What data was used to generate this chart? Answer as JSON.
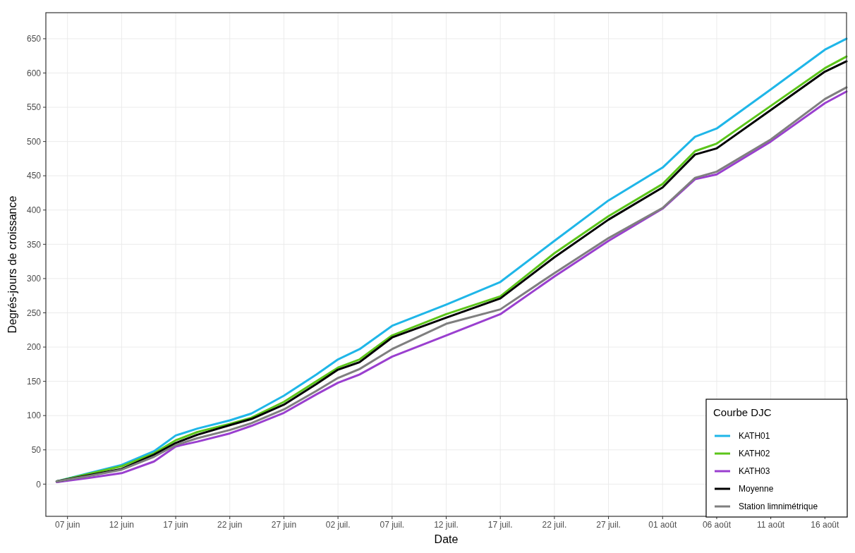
{
  "chart_data": {
    "type": "line",
    "xlabel": "Date",
    "ylabel": "Degrés-jours de croissance",
    "legend_title": "Courbe DJC",
    "legend": "bottom right",
    "grid": true,
    "line_style": "solid",
    "x": [
      "--06-06",
      "--06-09",
      "--06-12",
      "--06-15",
      "--06-17",
      "--06-19",
      "--06-22",
      "--06-24",
      "--06-27",
      "--06-30",
      "--07-02",
      "--07-04",
      "--07-07",
      "--07-12",
      "--07-17",
      "--07-22",
      "--07-27",
      "--08-01",
      "--08-04",
      "--08-06",
      "--08-11",
      "--08-16",
      "--08-18"
    ],
    "xlim": [
      "--06-05",
      "--08-18"
    ],
    "xticks": [
      {
        "value": "--06-07",
        "label": "07 juin"
      },
      {
        "value": "--06-12",
        "label": "12 juin"
      },
      {
        "value": "--06-17",
        "label": "17 juin"
      },
      {
        "value": "--06-22",
        "label": "22 juin"
      },
      {
        "value": "--06-27",
        "label": "27 juin"
      },
      {
        "value": "--07-02",
        "label": "02 juil."
      },
      {
        "value": "--07-07",
        "label": "07 juil."
      },
      {
        "value": "--07-12",
        "label": "12 juil."
      },
      {
        "value": "--07-17",
        "label": "17 juil."
      },
      {
        "value": "--07-22",
        "label": "22 juil."
      },
      {
        "value": "--07-27",
        "label": "27 juil."
      },
      {
        "value": "--08-01",
        "label": "01 août"
      },
      {
        "value": "--08-06",
        "label": "06 août"
      },
      {
        "value": "--08-11",
        "label": "11 août"
      },
      {
        "value": "--08-16",
        "label": "16 août"
      }
    ],
    "ylim": [
      -47,
      688
    ],
    "yticks": [
      0,
      50,
      100,
      150,
      200,
      250,
      300,
      350,
      400,
      450,
      500,
      550,
      600,
      650
    ],
    "series": [
      {
        "name": "KATH01",
        "color": "#1fb6e8",
        "values": [
          4,
          16,
          28,
          48,
          71,
          81,
          93,
          103,
          129,
          160,
          182,
          197,
          231,
          262,
          295,
          355,
          414,
          462,
          507,
          519,
          576,
          634,
          650
        ]
      },
      {
        "name": "KATH02",
        "color": "#5cc51a",
        "values": [
          4,
          15,
          26,
          45,
          64,
          76,
          88,
          97,
          120,
          150,
          170,
          182,
          217,
          248,
          274,
          337,
          391,
          438,
          486,
          497,
          552,
          607,
          624
        ]
      },
      {
        "name": "KATH03",
        "color": "#9a3fcf",
        "values": [
          3,
          9,
          16,
          33,
          55,
          62,
          74,
          85,
          104,
          131,
          148,
          160,
          186,
          217,
          248,
          303,
          355,
          402,
          445,
          452,
          500,
          556,
          573
        ]
      },
      {
        "name": "Moyenne",
        "color": "#000000",
        "values": [
          4,
          13,
          22,
          43,
          60,
          72,
          86,
          95,
          116,
          146,
          167,
          178,
          214,
          243,
          271,
          331,
          386,
          433,
          481,
          490,
          546,
          602,
          617
        ]
      },
      {
        "name": "Station limnimétrique",
        "color": "#7f7f7f",
        "values": [
          4,
          12,
          21,
          40,
          57,
          67,
          79,
          89,
          109,
          136,
          155,
          168,
          197,
          234,
          255,
          308,
          359,
          403,
          447,
          456,
          503,
          562,
          579
        ]
      }
    ]
  }
}
